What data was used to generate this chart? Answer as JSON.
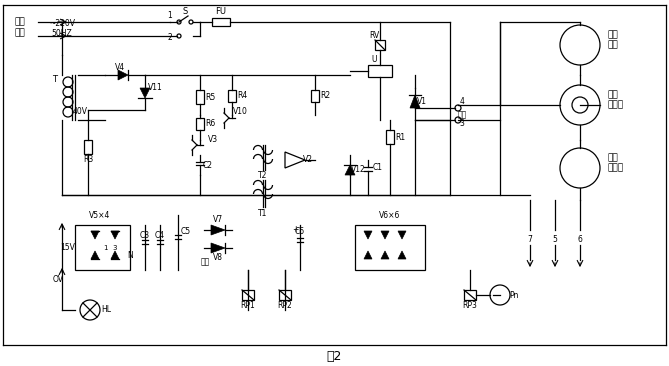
{
  "title": "图2",
  "bg_color": "#ffffff",
  "line_color": "#000000",
  "fig_width": 6.69,
  "fig_height": 3.66,
  "labels": {
    "xiang_xian": "相线",
    "zhong_xian": "中线",
    "voltage": "~220V  50HZ",
    "T": "T",
    "V4": "V4",
    "V11": "V11",
    "40V": "40V",
    "R3": "R3",
    "R5": "R5",
    "R6": "R6",
    "R4": "R4",
    "V10": "V10",
    "V3": "V3",
    "C2": "C2",
    "T2": "T2",
    "R2": "R2",
    "V2": "V2",
    "T1": "T1",
    "V12": "V12",
    "C1": "C1",
    "R1": "R1",
    "V1": "V1",
    "RV": "RV",
    "U": "U",
    "output": "输出",
    "V5x4": "V5×4",
    "15V": "15V",
    "C3": "C3",
    "C4": "C4",
    "N": "N",
    "C5": "C5",
    "V7": "V7",
    "V8": "V8",
    "C6": "C6",
    "V6x6": "V6×6",
    "RP1": "RP1",
    "RP2": "RP2",
    "RP3": "RP3",
    "Pn": "Pn",
    "HL": "HL",
    "OV": "OV",
    "tuo_dong_dian_ji": "拖动\n电机",
    "dian_ci_li_he_qi": "电磁\n离合器",
    "ce_su_fa_dian_ji": "测速\n发电机",
    "num7": "7",
    "num5": "5",
    "num6": "6",
    "num4": "4",
    "num3": "3",
    "num1": "1",
    "num2": "2",
    "S": "S",
    "FU": "FU",
    "plus1": "+",
    "plus2": "+"
  }
}
